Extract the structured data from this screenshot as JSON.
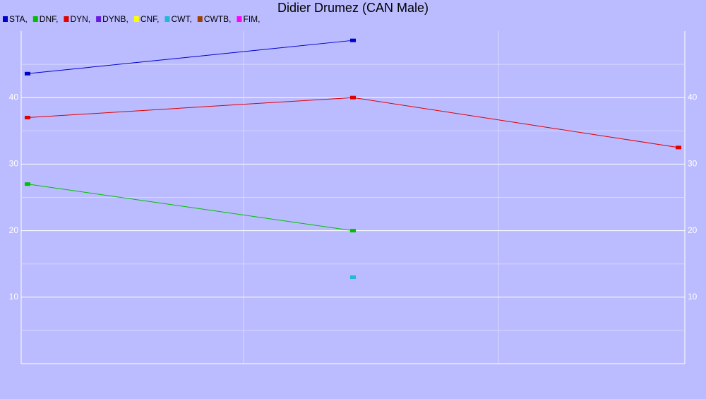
{
  "chart_data": {
    "type": "line",
    "title": "Didier Drumez (CAN Male)",
    "categories": [
      null,
      null,
      null
    ],
    "series": [
      {
        "name": "STA,",
        "color": "#0000cc",
        "values": [
          43.6,
          48.6,
          null
        ]
      },
      {
        "name": "DNF,",
        "color": "#00c000",
        "values": [
          27,
          20,
          null
        ]
      },
      {
        "name": "DYN,",
        "color": "#e00000",
        "values": [
          37,
          40,
          32.5
        ]
      },
      {
        "name": "DYNB,",
        "color": "#6a1ae0",
        "values": [
          null,
          null,
          null
        ]
      },
      {
        "name": "CNF,",
        "color": "#ffff00",
        "values": [
          null,
          null,
          null
        ]
      },
      {
        "name": "CWT,",
        "color": "#22b8d8",
        "values": [
          null,
          13,
          null
        ]
      },
      {
        "name": "CWTB,",
        "color": "#a04000",
        "values": [
          null,
          null,
          null
        ]
      },
      {
        "name": "FIM,",
        "color": "#ff00ff",
        "values": [
          null,
          null,
          null
        ]
      }
    ],
    "ylim": [
      0,
      50
    ],
    "yticks": [
      10,
      20,
      30,
      40
    ],
    "minor_yticks": [
      5,
      15,
      25,
      35,
      45
    ],
    "grid": true
  }
}
